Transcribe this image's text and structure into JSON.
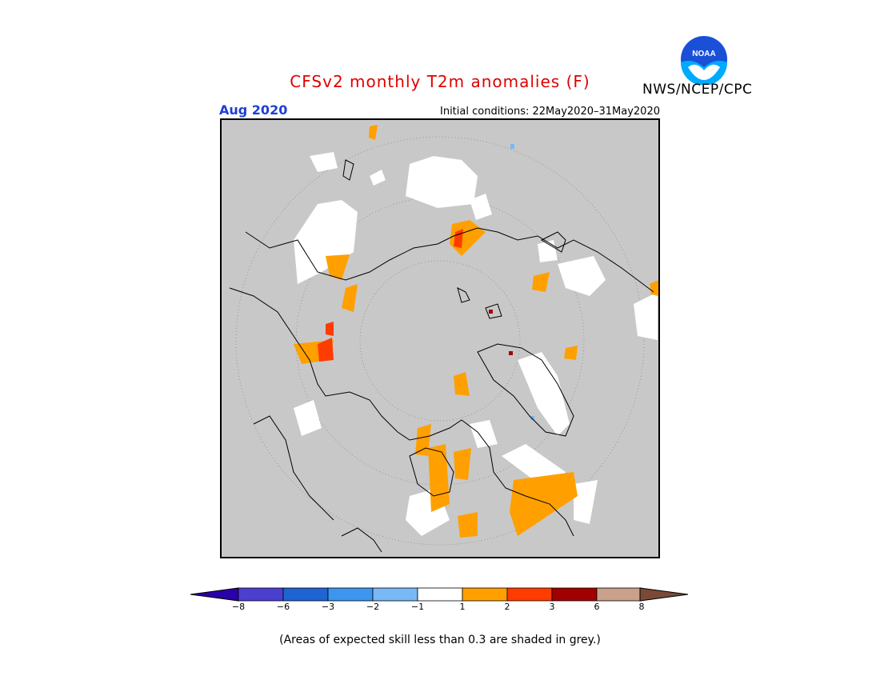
{
  "title": "CFSv2 monthly T2m anomalies (F)",
  "month": "Aug 2020",
  "initial_conditions": "Initial conditions: 22May2020–31May2020",
  "agency": "NWS/NCEP/CPC",
  "logo_icon": "noaa-logo-icon",
  "footnote": "(Areas of expected skill less than 0.3 are shaded in grey.)",
  "colors": {
    "low_skill_grey": "#c8c8c8",
    "neutral": "#ffffff",
    "warm_1": "#ffa000",
    "warm_2": "#ff3c00",
    "warm_3": "#a00000",
    "warm_4": "#c8a08c",
    "title_red": "#e00000",
    "month_blue": "#1f3fd6"
  },
  "legend": {
    "labels": [
      "−8",
      "−6",
      "−3",
      "−2",
      "−1",
      "1",
      "2",
      "3",
      "6",
      "8"
    ],
    "colors": [
      "#2a00a8",
      "#4b3fd0",
      "#1e64d2",
      "#3c96f0",
      "#78b9f5",
      "#ffffff",
      "#ffa000",
      "#ff3c00",
      "#a00000",
      "#c8a08c",
      "#7a4a36"
    ]
  }
}
